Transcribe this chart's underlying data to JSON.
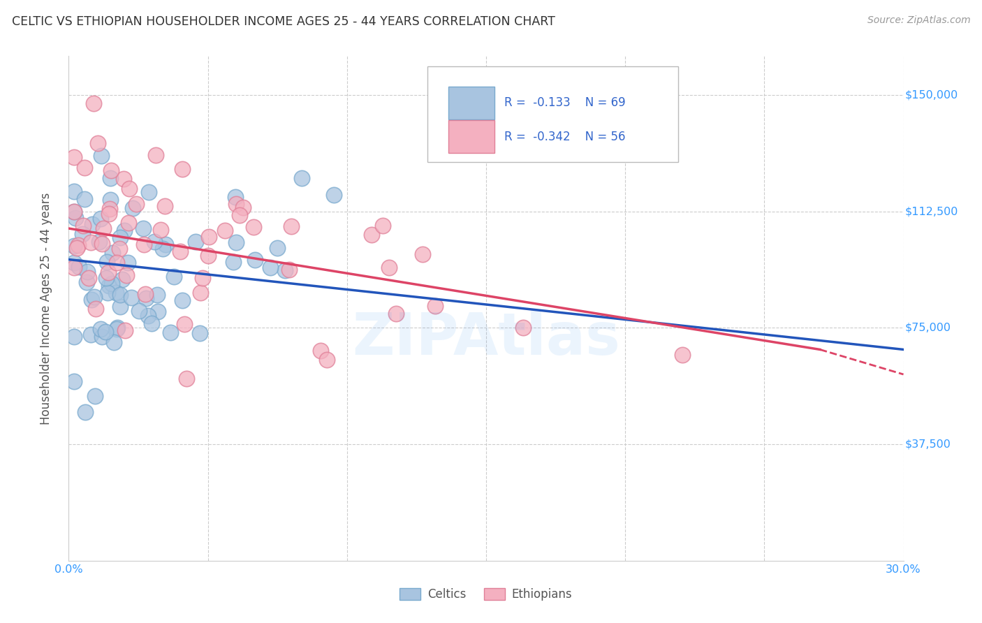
{
  "title": "CELTIC VS ETHIOPIAN HOUSEHOLDER INCOME AGES 25 - 44 YEARS CORRELATION CHART",
  "source": "Source: ZipAtlas.com",
  "ylabel": "Householder Income Ages 25 - 44 years",
  "xlim": [
    0,
    0.3
  ],
  "ylim": [
    0,
    162500
  ],
  "yticks": [
    37500,
    75000,
    112500,
    150000
  ],
  "ytick_labels": [
    "$37,500",
    "$75,000",
    "$112,500",
    "$150,000"
  ],
  "xticks": [
    0.0,
    0.05,
    0.1,
    0.15,
    0.2,
    0.25,
    0.3
  ],
  "xtick_labels": [
    "0.0%",
    "",
    "",
    "",
    "",
    "",
    "30.0%"
  ],
  "celtics_R": -0.133,
  "celtics_N": 69,
  "ethiopians_R": -0.342,
  "ethiopians_N": 56,
  "celtics_color": "#a8c4e0",
  "celtics_edge_color": "#7aaace",
  "ethiopians_color": "#f4b0c0",
  "ethiopians_edge_color": "#e08098",
  "celtics_line_color": "#2255bb",
  "ethiopians_line_color": "#dd4466",
  "watermark": "ZIPAtlas",
  "background_color": "#ffffff",
  "grid_color": "#cccccc",
  "axis_color": "#3399ff",
  "legend_text_color": "#3366cc",
  "title_color": "#333333",
  "celtics_line_x0": 0.0,
  "celtics_line_y0": 97000,
  "celtics_line_x1": 0.3,
  "celtics_line_y1": 68000,
  "ethiopians_line_x0": 0.0,
  "ethiopians_line_y0": 107000,
  "ethiopians_line_x1": 0.27,
  "ethiopians_line_y1": 68000,
  "ethiopians_line_dash_x1": 0.3,
  "ethiopians_line_dash_y1": 60000
}
